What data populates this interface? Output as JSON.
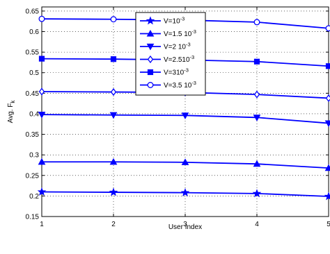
{
  "chart_data": {
    "type": "line",
    "xlabel": "User Index",
    "ylabel_main": "Avg. F",
    "ylabel_sub": "k",
    "x": [
      1,
      2,
      3,
      4,
      5
    ],
    "xlim": [
      1,
      5
    ],
    "ylim": [
      0.15,
      0.66
    ],
    "xticks": [
      "1",
      "2",
      "3",
      "4",
      "5"
    ],
    "yticks": [
      "0.15",
      "0.2",
      "0.25",
      "0.3",
      "0.35",
      "0.4",
      "0.45",
      "0.5",
      "0.55",
      "0.6",
      "0.65"
    ],
    "grid": true,
    "legend_position": "top-center",
    "line_color": "#0000ff",
    "series": [
      {
        "label_main": "V=10",
        "label_sup": "-3",
        "marker": "star",
        "values": [
          0.21,
          0.209,
          0.208,
          0.206,
          0.199
        ]
      },
      {
        "label_main": "V=1.5 10",
        "label_sup": "-3",
        "marker": "triangle-up",
        "values": [
          0.283,
          0.283,
          0.282,
          0.278,
          0.268
        ]
      },
      {
        "label_main": "V=2 10",
        "label_sup": "-3",
        "marker": "triangle-down",
        "values": [
          0.398,
          0.397,
          0.396,
          0.391,
          0.377
        ]
      },
      {
        "label_main": "V=2.510",
        "label_sup": "-3",
        "marker": "diamond",
        "values": [
          0.454,
          0.453,
          0.452,
          0.447,
          0.438
        ]
      },
      {
        "label_main": "V=310",
        "label_sup": "-3",
        "marker": "square",
        "values": [
          0.534,
          0.533,
          0.531,
          0.527,
          0.516
        ]
      },
      {
        "label_main": "V=3.5 10",
        "label_sup": "-3",
        "marker": "circle",
        "values": [
          0.631,
          0.63,
          0.628,
          0.623,
          0.608
        ]
      }
    ]
  }
}
